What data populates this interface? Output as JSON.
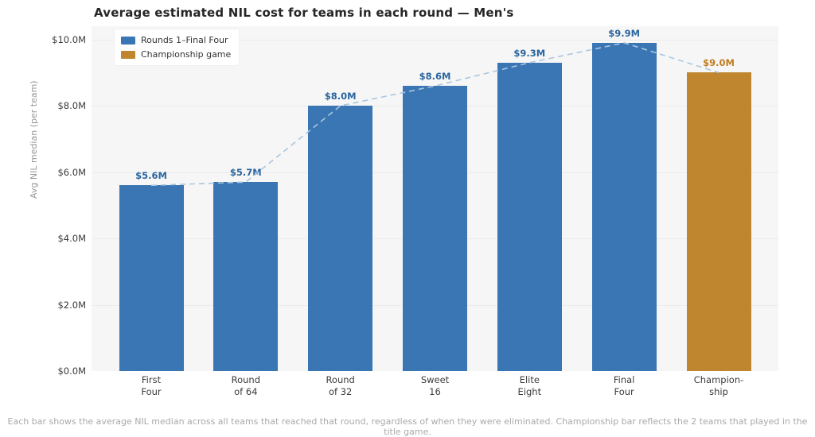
{
  "page": {
    "title": "Average estimated NIL cost for teams in each round — Men's",
    "footnote": "Each bar shows the average NIL median across all teams that reached that round, regardless of when they were eliminated. Championship bar reflects the 2 teams that played in the title game."
  },
  "chart_data": {
    "type": "bar",
    "title": "Average estimated NIL cost for teams in each round — Men's",
    "xlabel": "",
    "ylabel": "Avg NIL median (per team)",
    "categories": [
      "First\nFour",
      "Round\nof 64",
      "Round\nof 32",
      "Sweet\n16",
      "Elite\nEight",
      "Final\nFour",
      "Champion-\nship"
    ],
    "values": [
      5.6,
      5.7,
      8.0,
      8.6,
      9.3,
      9.9,
      9.0
    ],
    "value_labels": [
      "$5.6M",
      "$5.7M",
      "$8.0M",
      "$8.6M",
      "$9.3M",
      "$9.9M",
      "$9.0M"
    ],
    "bar_colors": [
      "#3a76b4",
      "#3a76b4",
      "#3a76b4",
      "#3a76b4",
      "#3a76b4",
      "#3a76b4",
      "#c0862f"
    ],
    "value_label_colors": [
      "#2b669f",
      "#2b669f",
      "#2b669f",
      "#2b669f",
      "#2b669f",
      "#2b669f",
      "#c07d1f"
    ],
    "ylim": [
      0,
      10.4
    ],
    "yticks": [
      0,
      2,
      4,
      6,
      8,
      10
    ],
    "ytick_labels": [
      "$0.0M",
      "$2.0M",
      "$4.0M",
      "$6.0M",
      "$8.0M",
      "$10.0M"
    ],
    "grid": true,
    "plot_bg": "#f6f6f6",
    "grid_color": "#ebebeb",
    "legend": {
      "position": "upper-left",
      "items": [
        {
          "label": "Rounds 1–Final Four",
          "color": "#3a76b4"
        },
        {
          "label": "Championship game",
          "color": "#c0862f"
        }
      ]
    },
    "connector": {
      "style": "dashed",
      "color": "#aac6df"
    }
  }
}
